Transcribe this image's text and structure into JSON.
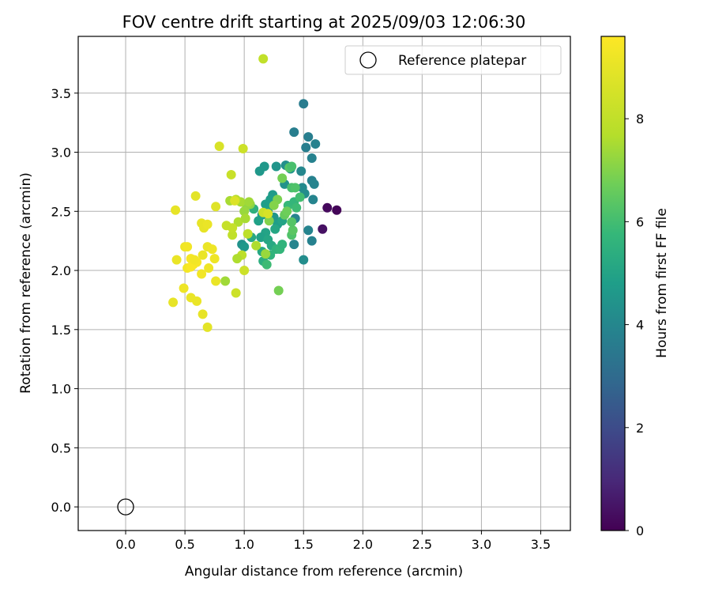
{
  "chart_data": {
    "type": "scatter",
    "title": "FOV centre drift starting at 2025/09/03 12:06:30",
    "xlabel": "Angular distance from reference (arcmin)",
    "ylabel": "Rotation from reference (arcmin)",
    "xlim": [
      -0.4,
      3.75
    ],
    "ylim": [
      -0.2,
      3.98
    ],
    "xticks": [
      0.0,
      0.5,
      1.0,
      1.5,
      2.0,
      2.5,
      3.0,
      3.5
    ],
    "xtick_labels": [
      "0.0",
      "0.5",
      "1.0",
      "1.5",
      "2.0",
      "2.5",
      "3.0",
      "3.5"
    ],
    "yticks": [
      0.0,
      0.5,
      1.0,
      1.5,
      2.0,
      2.5,
      3.0,
      3.5
    ],
    "ytick_labels": [
      "0.0",
      "0.5",
      "1.0",
      "1.5",
      "2.0",
      "2.5",
      "3.0",
      "3.5"
    ],
    "grid": true,
    "legend": {
      "position": "top-right",
      "entries": [
        "Reference platepar"
      ]
    },
    "reference_point": {
      "label": "Reference platepar",
      "x": 0.0,
      "y": 0.0
    },
    "colorbar": {
      "label": "Hours from first FF file",
      "min": 0,
      "max": 9.6,
      "ticks": [
        0,
        2,
        4,
        6,
        8
      ],
      "tick_labels": [
        "0",
        "2",
        "4",
        "6",
        "8"
      ],
      "colormap": "viridis"
    },
    "points": [
      [
        1.78,
        2.51,
        0.1
      ],
      [
        1.7,
        2.53,
        0.2
      ],
      [
        1.66,
        2.35,
        0.4
      ],
      [
        1.5,
        3.41,
        3.6
      ],
      [
        1.42,
        3.17,
        3.7
      ],
      [
        1.54,
        3.13,
        3.7
      ],
      [
        1.6,
        3.07,
        3.8
      ],
      [
        1.52,
        3.04,
        3.7
      ],
      [
        1.57,
        2.95,
        3.8
      ],
      [
        1.58,
        2.6,
        3.9
      ],
      [
        1.57,
        2.76,
        3.8
      ],
      [
        1.59,
        2.73,
        3.9
      ],
      [
        1.57,
        2.25,
        3.8
      ],
      [
        1.54,
        2.34,
        3.9
      ],
      [
        1.48,
        2.84,
        4.0
      ],
      [
        1.49,
        2.7,
        4.1
      ],
      [
        1.51,
        2.65,
        4.2
      ],
      [
        1.43,
        2.44,
        3.9
      ],
      [
        1.42,
        2.22,
        3.9
      ],
      [
        1.5,
        2.09,
        4.2
      ],
      [
        1.35,
        2.89,
        4.3
      ],
      [
        1.39,
        2.86,
        4.5
      ],
      [
        1.34,
        2.73,
        4.4
      ],
      [
        1.27,
        2.88,
        4.5
      ],
      [
        1.17,
        2.88,
        4.6
      ],
      [
        1.13,
        2.84,
        4.6
      ],
      [
        1.24,
        2.64,
        4.7
      ],
      [
        1.22,
        2.6,
        4.8
      ],
      [
        1.18,
        2.56,
        4.8
      ],
      [
        1.2,
        2.5,
        4.9
      ],
      [
        1.15,
        2.47,
        4.7
      ],
      [
        1.12,
        2.42,
        4.9
      ],
      [
        1.25,
        2.45,
        4.5
      ],
      [
        1.28,
        2.39,
        4.8
      ],
      [
        1.32,
        2.42,
        5.0
      ],
      [
        1.26,
        2.35,
        5.1
      ],
      [
        1.18,
        2.32,
        5.0
      ],
      [
        1.14,
        2.28,
        4.9
      ],
      [
        1.2,
        2.26,
        5.1
      ],
      [
        1.23,
        2.21,
        5.2
      ],
      [
        1.15,
        2.16,
        5.2
      ],
      [
        1.16,
        2.08,
        5.4
      ],
      [
        1.22,
        2.13,
        5.6
      ],
      [
        1.27,
        2.18,
        5.6
      ],
      [
        1.3,
        2.18,
        5.7
      ],
      [
        1.32,
        2.22,
        5.6
      ],
      [
        1.19,
        2.05,
        5.9
      ],
      [
        1.37,
        2.55,
        5.8
      ],
      [
        1.42,
        2.58,
        5.7
      ],
      [
        1.44,
        2.53,
        5.9
      ],
      [
        1.47,
        2.62,
        6.0
      ],
      [
        1.4,
        2.7,
        6.1
      ],
      [
        1.43,
        2.7,
        6.2
      ],
      [
        1.38,
        2.87,
        6.3
      ],
      [
        1.4,
        2.88,
        6.1
      ],
      [
        1.4,
        2.3,
        6.2
      ],
      [
        1.41,
        2.34,
        6.4
      ],
      [
        1.4,
        2.41,
        6.3
      ],
      [
        1.34,
        2.47,
        6.6
      ],
      [
        1.36,
        2.5,
        6.7
      ],
      [
        1.32,
        2.78,
        6.8
      ],
      [
        1.28,
        2.6,
        6.9
      ],
      [
        1.25,
        2.55,
        7.0
      ],
      [
        1.21,
        2.42,
        7.0
      ],
      [
        1.29,
        1.83,
        6.8
      ],
      [
        0.98,
        2.22,
        4.4
      ],
      [
        1.0,
        2.2,
        4.6
      ],
      [
        1.06,
        2.28,
        5.2
      ],
      [
        1.08,
        2.52,
        5.5
      ],
      [
        1.05,
        2.56,
        7.1
      ],
      [
        1.02,
        2.55,
        7.2
      ],
      [
        1.0,
        2.5,
        7.3
      ],
      [
        0.97,
        2.58,
        7.5
      ],
      [
        0.93,
        2.6,
        7.7
      ],
      [
        0.88,
        2.59,
        7.5
      ],
      [
        0.95,
        2.41,
        7.6
      ],
      [
        1.01,
        2.44,
        7.5
      ],
      [
        1.04,
        2.58,
        7.4
      ],
      [
        0.84,
        1.91,
        7.4
      ],
      [
        1.1,
        2.21,
        7.6
      ],
      [
        1.18,
        2.14,
        7.3
      ],
      [
        1.03,
        2.31,
        7.9
      ],
      [
        0.98,
        2.13,
        7.9
      ],
      [
        0.94,
        2.1,
        7.6
      ],
      [
        0.9,
        2.3,
        8.0
      ],
      [
        0.85,
        2.38,
        8.1
      ],
      [
        0.9,
        2.36,
        8.1
      ],
      [
        0.89,
        2.81,
        8.2
      ],
      [
        0.99,
        3.03,
        8.3
      ],
      [
        0.79,
        3.05,
        8.6
      ],
      [
        1.16,
        3.79,
        8.0
      ],
      [
        1.0,
        2.0,
        8.3
      ],
      [
        0.93,
        1.81,
        8.3
      ],
      [
        1.16,
        2.49,
        8.3
      ],
      [
        1.2,
        2.48,
        8.6
      ],
      [
        0.92,
        2.59,
        8.7
      ],
      [
        0.76,
        2.54,
        8.8
      ],
      [
        0.59,
        2.63,
        8.9
      ],
      [
        0.42,
        2.51,
        9.0
      ],
      [
        0.64,
        2.4,
        9.0
      ],
      [
        0.66,
        2.36,
        9.0
      ],
      [
        0.69,
        2.39,
        9.1
      ],
      [
        0.69,
        2.2,
        9.1
      ],
      [
        0.73,
        2.18,
        9.2
      ],
      [
        0.75,
        2.1,
        9.2
      ],
      [
        0.65,
        2.13,
        9.1
      ],
      [
        0.7,
        2.02,
        9.2
      ],
      [
        0.64,
        1.97,
        9.3
      ],
      [
        0.43,
        2.09,
        9.1
      ],
      [
        0.5,
        2.2,
        9.2
      ],
      [
        0.52,
        2.2,
        9.3
      ],
      [
        0.55,
        2.1,
        9.4
      ],
      [
        0.57,
        2.05,
        9.5
      ],
      [
        0.6,
        2.07,
        9.4
      ],
      [
        0.52,
        2.02,
        9.3
      ],
      [
        0.55,
        2.03,
        9.5
      ],
      [
        0.58,
        2.09,
        9.3
      ],
      [
        0.49,
        1.85,
        9.2
      ],
      [
        0.55,
        1.77,
        9.1
      ],
      [
        0.6,
        1.74,
        9.1
      ],
      [
        0.4,
        1.73,
        9.0
      ],
      [
        0.65,
        1.63,
        9.0
      ],
      [
        0.69,
        1.52,
        8.9
      ],
      [
        0.76,
        1.91,
        9.1
      ]
    ]
  }
}
